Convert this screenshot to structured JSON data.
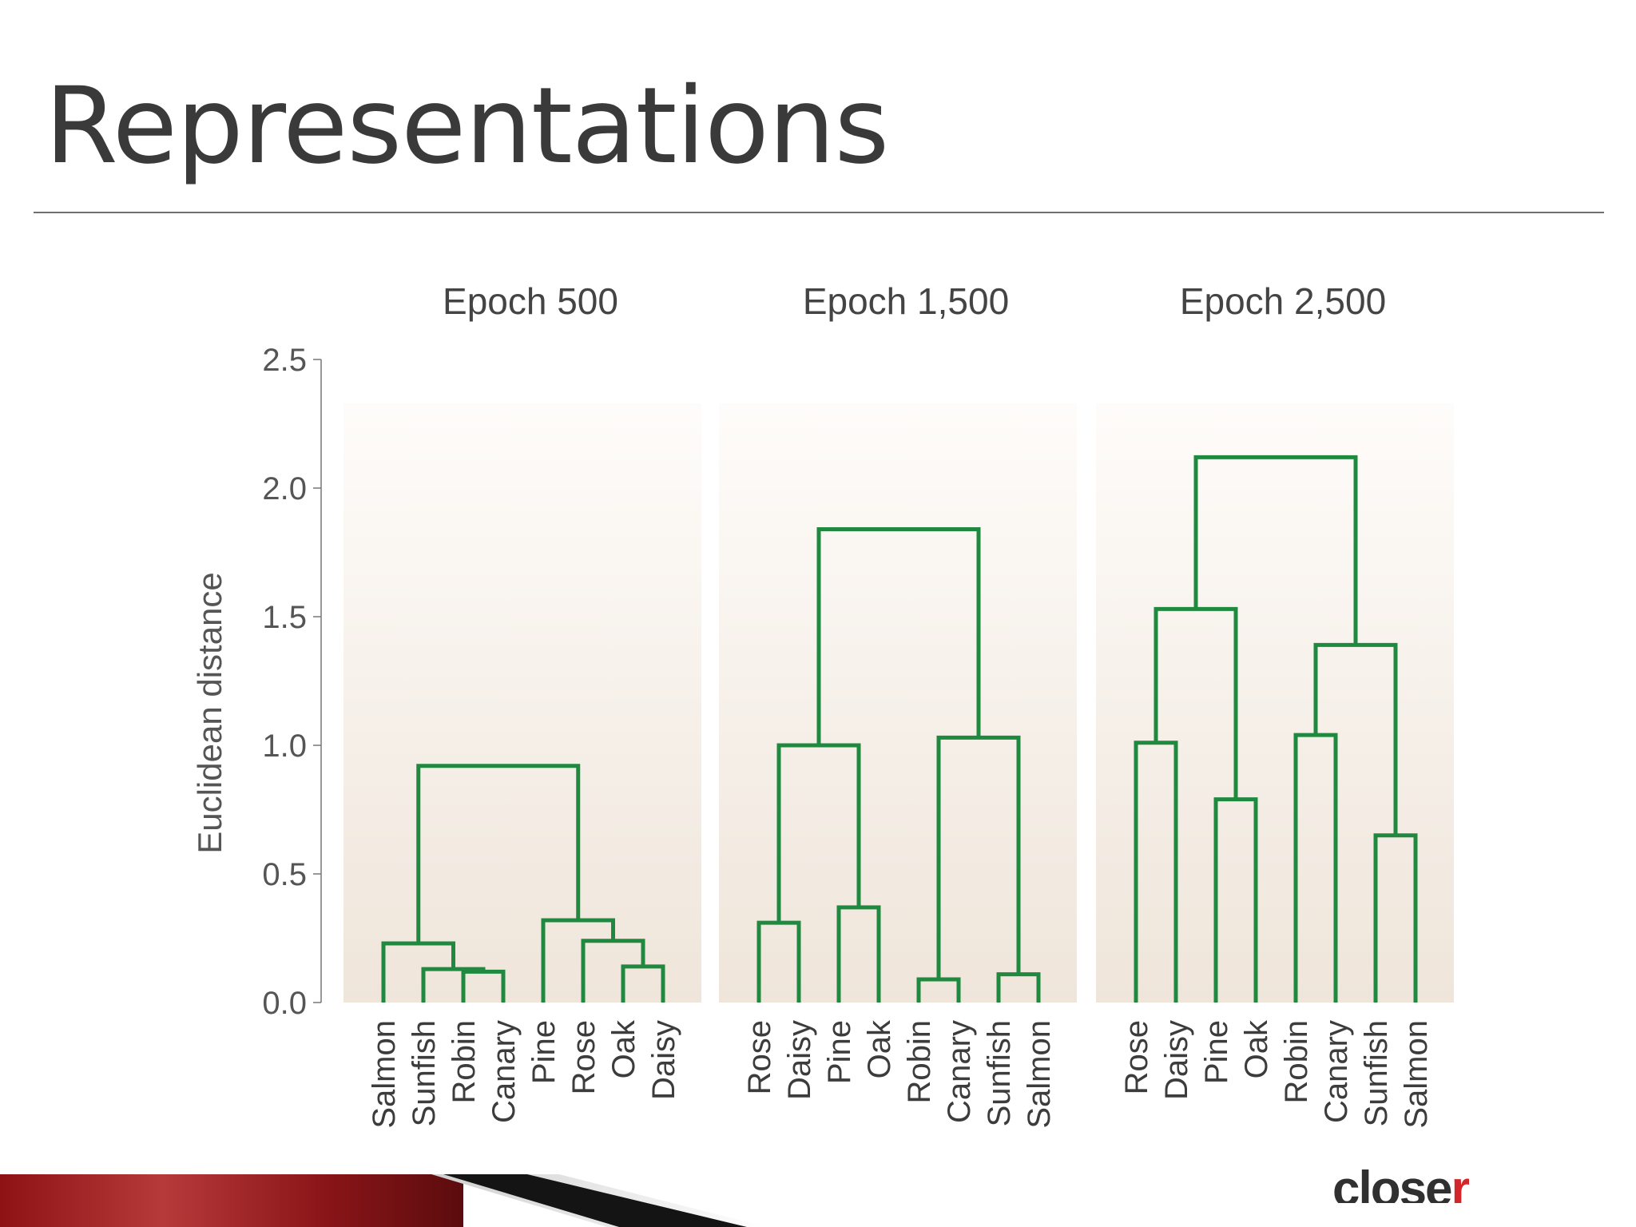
{
  "slide": {
    "title": "Representations"
  },
  "branding": {
    "logo_main": "close",
    "logo_accent": "r",
    "accent_color": "#d2262a"
  },
  "colors": {
    "tree": "#1f8a3f",
    "panel_top": "#fdfaf7",
    "panel_bottom": "#efe5da",
    "axis": "#555555"
  },
  "chart_data": {
    "type": "dendrogram",
    "ylabel": "Euclidean distance",
    "ylim": [
      0,
      2.5
    ],
    "yticks": [
      0.0,
      0.5,
      1.0,
      1.5,
      2.0,
      2.5
    ],
    "ytick_labels": [
      "0.0",
      "0.5",
      "1.0",
      "1.5",
      "2.0",
      "2.5"
    ],
    "panels": [
      {
        "title": "Epoch 500",
        "leaves": [
          "Salmon",
          "Sunfish",
          "Robin",
          "Canary",
          "Pine",
          "Rose",
          "Oak",
          "Daisy"
        ],
        "merges": [
          {
            "left": 6,
            "right": 7,
            "height": 0.14
          },
          {
            "left": 2,
            "right": 3,
            "height": 0.12
          },
          {
            "left": 5,
            "right": "m0",
            "height": 0.24
          },
          {
            "left": "m1",
            "right": null,
            "height": 0.13
          },
          {
            "left": 1,
            "right": "m1",
            "height": 0.13
          },
          {
            "left": 0,
            "right": "m4",
            "height": 0.23
          },
          {
            "left": 4,
            "right": "m2",
            "height": 0.32
          },
          {
            "left": "m5",
            "right": "m6",
            "height": 0.92
          }
        ]
      },
      {
        "title": "Epoch 1,500",
        "leaves": [
          "Rose",
          "Daisy",
          "Pine",
          "Oak",
          "Robin",
          "Canary",
          "Sunfish",
          "Salmon"
        ],
        "merges": [
          {
            "left": 4,
            "right": 5,
            "height": 0.09
          },
          {
            "left": 6,
            "right": 7,
            "height": 0.11
          },
          {
            "left": 0,
            "right": 1,
            "height": 0.31
          },
          {
            "left": 2,
            "right": 3,
            "height": 0.37
          },
          {
            "left": "m2",
            "right": "m3",
            "height": 1.0
          },
          {
            "left": "m0",
            "right": "m1",
            "height": 1.03
          },
          {
            "left": "m4",
            "right": "m5",
            "height": 1.84
          }
        ]
      },
      {
        "title": "Epoch 2,500",
        "leaves": [
          "Rose",
          "Daisy",
          "Pine",
          "Oak",
          "Robin",
          "Canary",
          "Sunfish",
          "Salmon"
        ],
        "merges": [
          {
            "left": 6,
            "right": 7,
            "height": 0.65
          },
          {
            "left": 2,
            "right": 3,
            "height": 0.79
          },
          {
            "left": 0,
            "right": 1,
            "height": 1.01
          },
          {
            "left": 4,
            "right": 5,
            "height": 1.04
          },
          {
            "left": "m3",
            "right": "m0",
            "height": 1.39
          },
          {
            "left": "m2",
            "right": "m1",
            "height": 1.53
          },
          {
            "left": "m5",
            "right": "m4",
            "height": 2.12
          }
        ]
      }
    ]
  }
}
